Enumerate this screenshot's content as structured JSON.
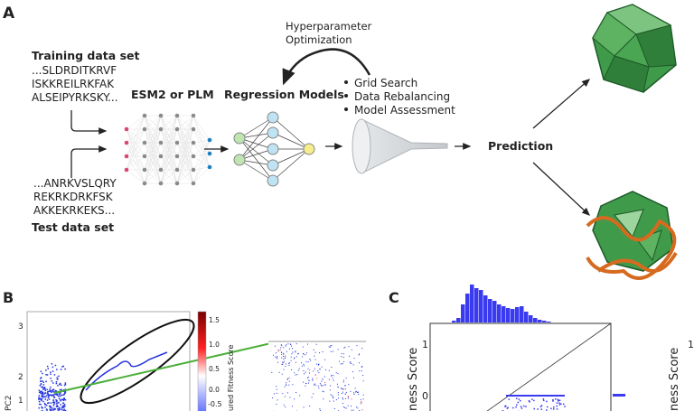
{
  "panel_a": {
    "label": "A",
    "training": {
      "title": "Training data set",
      "lines": [
        "...SLDRDITKRVF",
        "ISKKREILRKFAK",
        "ALSEIPYRKSKY..."
      ]
    },
    "test": {
      "title": "Test data set",
      "lines": [
        "...ANRKVSLQRY",
        "REKRKDRKFSK",
        "AKKEKRKEKS..."
      ]
    },
    "esm_label": "ESM2 or PLM",
    "regression_label": "Regression Models",
    "hyper_label": [
      "Hyperparameter",
      "Optimization"
    ],
    "bullets": [
      "Grid Search",
      "Data Rebalancing",
      "Model Assessment"
    ],
    "prediction_label": "Prediction",
    "colors": {
      "input_node": "#d9476e",
      "hidden_node": "#8a8a8a",
      "output_node": "#1a7fbf",
      "green_node": "#bfe6b0",
      "blue_node": "#bfe3f2",
      "yellow_node": "#f5ee8a",
      "capsid": "#3f9a4a"
    }
  },
  "panel_b": {
    "label": "B",
    "ylabel": "PC2",
    "yticks": [
      "3",
      "2",
      "1"
    ],
    "colorbar_label": "ured Fitness Score",
    "colorbar_ticks": [
      "1.5",
      "1.0",
      "0.5",
      "0.0",
      "-0.5"
    ],
    "colors": {
      "points": "#2233dd",
      "ellipse": "#111111",
      "zoom_line": "#4caf3a"
    }
  },
  "panel_c": {
    "label": "C",
    "ylabel": "ness Score",
    "yticks": [
      "1",
      "0"
    ],
    "colors": {
      "bars": "#3a3af0"
    },
    "right_fragment": {
      "ylabel": "ness Score",
      "ytick": "1"
    }
  }
}
